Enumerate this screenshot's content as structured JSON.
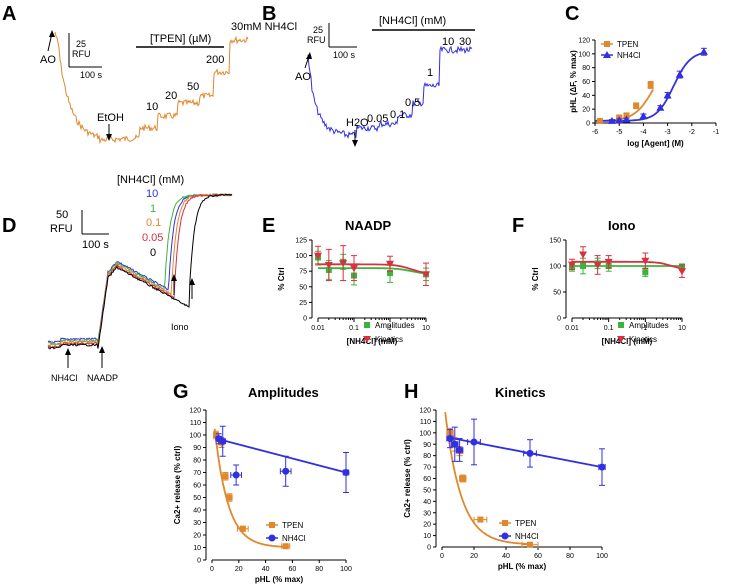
{
  "colors": {
    "tpen": "#E0882E",
    "nh4cl": "#3030E0",
    "green": "#3CB43C",
    "red": "#D83040",
    "black": "#000000"
  },
  "panels": {
    "A": {
      "label": "A",
      "ao": "AO",
      "etoh": "EtOH",
      "scale_y": "25",
      "scale_y_unit": "RFU",
      "scale_x": "100 s",
      "bracket_label": "[TPEN] (µM)",
      "conc": [
        "10",
        "20",
        "50",
        "200"
      ],
      "nh4cl_label": "30mM NH4Cl"
    },
    "B": {
      "label": "B",
      "ao": "AO",
      "h2o": "H2O",
      "scale_y": "25",
      "scale_y_unit": "RFU",
      "scale_x": "100 s",
      "bracket_label": "[NH4Cl] (mM)",
      "conc": [
        "0.05",
        "0.1",
        "0.5",
        "1",
        "10",
        "30"
      ]
    },
    "C": {
      "label": "C",
      "legend": [
        "TPEN",
        "NH4Cl"
      ]
    },
    "D": {
      "label": "D",
      "conc_title": "[NH4Cl] (mM)",
      "conc": [
        "10",
        "1",
        "0.1",
        "0.05",
        "0"
      ],
      "scale_y": "50",
      "scale_y_unit": "RFU",
      "scale_x": "100 s",
      "iono": "Iono",
      "nh4cl": "NH4Cl",
      "naadp": "NAADP"
    },
    "E": {
      "label": "E",
      "title": "NAADP",
      "legend": [
        "Amplitudes",
        "Kinetics"
      ]
    },
    "F": {
      "label": "F",
      "title": "Iono",
      "legend": [
        "Amplitudes",
        "Kinetics"
      ]
    },
    "G": {
      "label": "G",
      "title": "Amplitudes",
      "legend": [
        "TPEN",
        "NH4Cl"
      ]
    },
    "H": {
      "label": "H",
      "title": "Kinetics",
      "legend": [
        "TPEN",
        "NH4Cl"
      ]
    }
  },
  "chart_data": [
    {
      "panel": "C",
      "type": "scatter",
      "xlabel": "log [Agent] (M)",
      "ylabel": "pHL (ΔF, % max)",
      "xlim": [
        -6,
        -1
      ],
      "ylim": [
        0,
        120
      ],
      "xticks": [
        -6,
        -5,
        -4,
        -3,
        -2,
        -1
      ],
      "yticks": [
        0,
        20,
        40,
        60,
        80,
        100,
        120
      ],
      "series": [
        {
          "name": "TPEN",
          "x": [
            -5.8,
            -5,
            -4.7,
            -4.3,
            -3.7
          ],
          "y": [
            3,
            8,
            11,
            25,
            55
          ],
          "err": [
            2,
            2,
            3,
            4,
            5
          ]
        },
        {
          "name": "NH4Cl",
          "x": [
            -5.3,
            -5,
            -4.7,
            -4,
            -3.3,
            -3,
            -2.5,
            -1.5
          ],
          "y": [
            3,
            4,
            5,
            10,
            22,
            40,
            70,
            103
          ],
          "err": [
            2,
            2,
            2,
            3,
            3,
            4,
            5,
            5
          ]
        }
      ]
    },
    {
      "panel": "E",
      "type": "scatter",
      "ylabel": "% Ctrl",
      "xlabel": "[NH4Cl] (mM)",
      "xscale": "log",
      "xlim": [
        0.01,
        10
      ],
      "ylim": [
        0,
        125
      ],
      "yticks": [
        0,
        25,
        50,
        75,
        100,
        125
      ],
      "xticks": [
        0.01,
        0.1,
        1,
        10
      ],
      "series": [
        {
          "name": "Amplitudes",
          "x": [
            0.01,
            0.02,
            0.05,
            0.1,
            1,
            10
          ],
          "y": [
            97,
            77,
            90,
            68,
            72,
            70
          ],
          "err": [
            10,
            15,
            12,
            15,
            15,
            10
          ]
        },
        {
          "name": "Kinetics",
          "x": [
            0.01,
            0.02,
            0.05,
            0.1,
            1,
            10
          ],
          "y": [
            100,
            85,
            88,
            80,
            87,
            70
          ],
          "err": [
            15,
            25,
            28,
            20,
            12,
            18
          ]
        }
      ]
    },
    {
      "panel": "F",
      "type": "scatter",
      "ylabel": "% Ctrl",
      "xlabel": "[NH4Cl] (mM)",
      "xscale": "log",
      "xlim": [
        0.01,
        10
      ],
      "ylim": [
        0,
        150
      ],
      "yticks": [
        0,
        50,
        100,
        150
      ],
      "xticks": [
        0.01,
        0.1,
        1,
        10
      ],
      "series": [
        {
          "name": "Amplitudes",
          "x": [
            0.01,
            0.02,
            0.05,
            0.1,
            1,
            10
          ],
          "y": [
            98,
            100,
            105,
            100,
            88,
            98
          ],
          "err": [
            8,
            15,
            10,
            10,
            8,
            6
          ]
        },
        {
          "name": "Kinetics",
          "x": [
            0.01,
            0.02,
            0.05,
            0.1,
            1,
            10
          ],
          "y": [
            103,
            122,
            102,
            108,
            110,
            90
          ],
          "err": [
            10,
            15,
            18,
            12,
            15,
            12
          ]
        }
      ]
    },
    {
      "panel": "G",
      "type": "scatter",
      "ylabel": "Ca2+ release (% ctrl)",
      "xlabel": "pHL (% max)",
      "xlim": [
        0,
        100
      ],
      "ylim": [
        0,
        120
      ],
      "xticks": [
        0,
        20,
        40,
        60,
        80,
        100
      ],
      "yticks": [
        0,
        10,
        20,
        30,
        40,
        50,
        60,
        70,
        80,
        90,
        100,
        110,
        120
      ],
      "series": [
        {
          "name": "TPEN",
          "x": [
            3,
            7,
            10,
            13,
            23,
            55
          ],
          "y": [
            100,
            94,
            67,
            50,
            25,
            11
          ],
          "xerr": [
            1,
            2,
            2,
            2,
            4,
            3
          ],
          "yerr": [
            3,
            4,
            3,
            3,
            2,
            1
          ]
        },
        {
          "name": "NH4Cl",
          "x": [
            5,
            8,
            18,
            55,
            100
          ],
          "y": [
            97,
            95,
            68,
            71,
            70
          ],
          "xerr": [
            2,
            2,
            4,
            4,
            2
          ],
          "yerr": [
            4,
            12,
            8,
            12,
            16
          ]
        }
      ]
    },
    {
      "panel": "H",
      "type": "scatter",
      "ylabel": "Ca2+ release (% ctrl)",
      "xlabel": "pHL (% max)",
      "xlim": [
        0,
        100
      ],
      "ylim": [
        0,
        120
      ],
      "xticks": [
        0,
        20,
        40,
        60,
        80,
        100
      ],
      "yticks": [
        0,
        10,
        20,
        30,
        40,
        50,
        60,
        70,
        80,
        90,
        100,
        110,
        120
      ],
      "series": [
        {
          "name": "TPEN",
          "x": [
            5,
            8,
            11,
            13,
            24,
            55
          ],
          "y": [
            100,
            90,
            84,
            60,
            24,
            2
          ],
          "xerr": [
            2,
            2,
            2,
            2,
            4,
            5
          ],
          "yerr": [
            4,
            6,
            4,
            3,
            2,
            1
          ]
        },
        {
          "name": "NH4Cl",
          "x": [
            5,
            8,
            11,
            20,
            55,
            100
          ],
          "y": [
            95,
            90,
            85,
            92,
            82,
            70
          ],
          "xerr": [
            2,
            2,
            2,
            4,
            4,
            2
          ],
          "yerr": [
            8,
            15,
            10,
            20,
            12,
            16
          ]
        }
      ]
    }
  ]
}
